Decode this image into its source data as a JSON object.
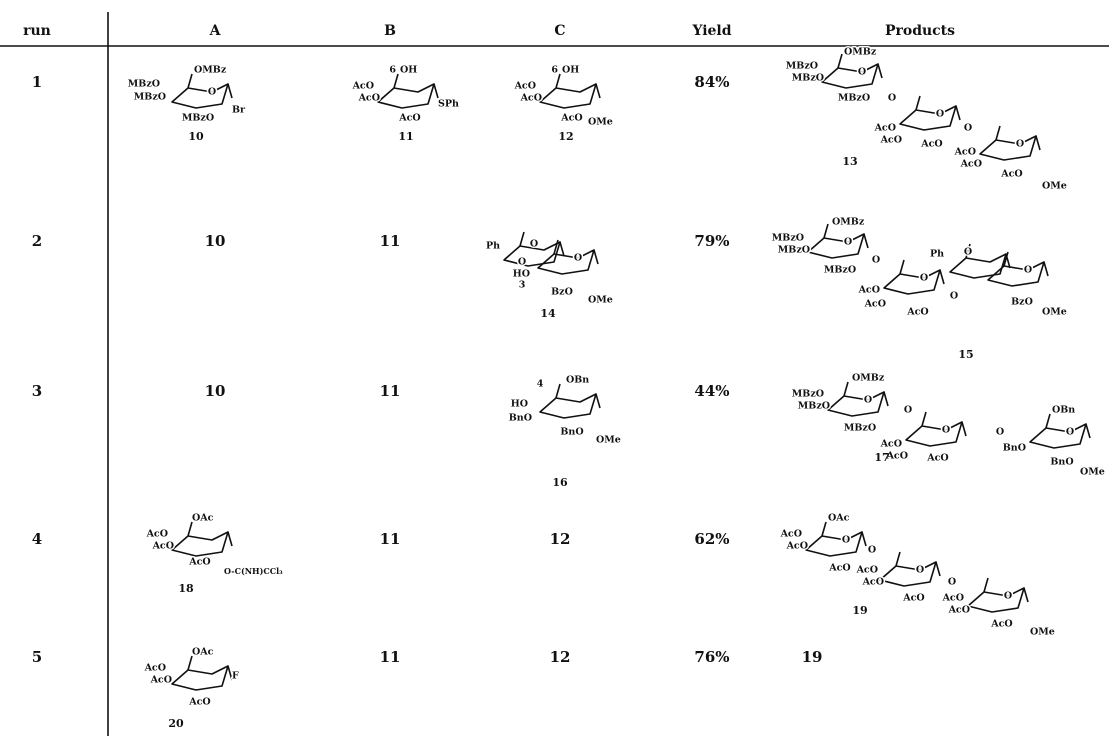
{
  "table": {
    "headers": [
      "run",
      "A",
      "B",
      "C",
      "Yield",
      "Products"
    ],
    "rows": [
      {
        "run": "1",
        "A": {
          "labels": [
            "OMBz",
            "O",
            "MBzO",
            "MBzO",
            "MBzO",
            "Br"
          ],
          "number": "10"
        },
        "B": {
          "labels": [
            "6",
            "OH",
            "AcO",
            "AcO",
            "AcO",
            "SPh"
          ],
          "number": "11"
        },
        "C": {
          "labels": [
            "6",
            "OH",
            "AcO",
            "AcO",
            "AcO",
            "OMe"
          ],
          "number": "12"
        },
        "yield": "84%",
        "products": {
          "labels": [
            "OMBz",
            "MBzO",
            "MBzO",
            "O",
            "MBzO",
            "O",
            "AcO",
            "AcO",
            "O",
            "AcO",
            "O",
            "AcO",
            "AcO",
            "O",
            "AcO",
            "OMe"
          ],
          "number": "13"
        }
      },
      {
        "run": "2",
        "A": "10",
        "B": "11",
        "C": {
          "labels": [
            "Ph",
            "O",
            "O",
            "O",
            "HO",
            "3",
            "BzO",
            "OMe"
          ],
          "number": "14"
        },
        "yield": "79%",
        "products": {
          "labels": [
            "OMBz",
            "MBzO",
            "MBzO",
            "O",
            "MBzO",
            "O",
            "Ph",
            "O",
            "AcO",
            "O",
            "AcO",
            "O",
            "O",
            "AcO",
            "BzO",
            "OMe"
          ],
          "number": "15"
        }
      },
      {
        "run": "3",
        "A": "10",
        "B": "11",
        "C": {
          "labels": [
            "4",
            "OBn",
            "HO",
            "BnO",
            "BnO",
            "OMe"
          ],
          "number": "16"
        },
        "yield": "44%",
        "products": {
          "labels": [
            "OMBz",
            "MBzO",
            "MBzO",
            "O",
            "O",
            "MBzO",
            "AcO",
            "AcO",
            "O",
            "O",
            "OBn",
            "AcO",
            "BnO",
            "O",
            "BnO",
            "OMe"
          ],
          "number": "17"
        }
      },
      {
        "run": "4",
        "A": {
          "labels": [
            "OAc",
            "AcO",
            "AcO",
            "AcO",
            "O-C(NH)CCl₃"
          ],
          "number": "18"
        },
        "B": "11",
        "C": "12",
        "yield": "62%",
        "products": {
          "labels": [
            "OAc",
            "AcO",
            "AcO",
            "O",
            "O",
            "AcO",
            "AcO",
            "AcO",
            "O",
            "AcO",
            "O",
            "AcO",
            "AcO",
            "O",
            "AcO",
            "OMe"
          ],
          "number": "19"
        }
      },
      {
        "run": "5",
        "A": {
          "labels": [
            "OAc",
            "AcO",
            "AcO",
            "AcO",
            "F"
          ],
          "number": "20"
        },
        "B": "11",
        "C": "12",
        "yield": "76%",
        "products": "19"
      }
    ]
  }
}
